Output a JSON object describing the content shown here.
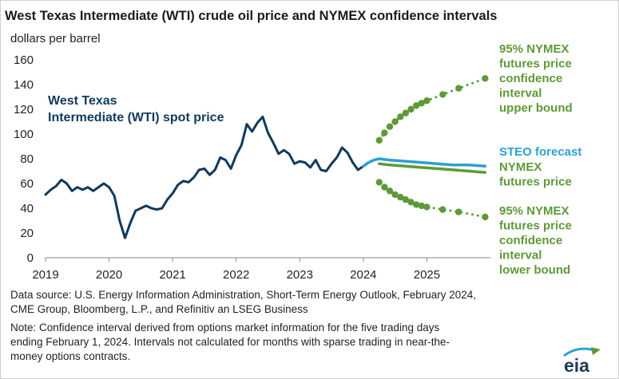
{
  "title": "West Texas Intermediate (WTI) crude oil price and NYMEX confidence intervals",
  "subtitle": "dollars per barrel",
  "source_lines": [
    "Data source: U.S. Energy Information Administration, Short-Term Energy Outlook, February 2024,",
    "CME Group, Bloomberg, L.P., and Refinitiv an LSEG Business"
  ],
  "note_lines": [
    "Note: Confidence interval derived from options market information for the five trading days",
    "ending February 1, 2024. Intervals not calculated for months with sparse trading in near-the-",
    "money options contracts."
  ],
  "logo_text": "eia",
  "colors": {
    "wti": "#0f3a5c",
    "steo": "#2aa1d4",
    "nymex": "#5d9a37",
    "text": "#222222",
    "axis": "#888888"
  },
  "chart_data": {
    "type": "line",
    "xlim": [
      "2019-01",
      "2025-12"
    ],
    "ylim": [
      0,
      160
    ],
    "ytick_labels": [
      "0",
      "20",
      "40",
      "60",
      "80",
      "100",
      "120",
      "140",
      "160"
    ],
    "xtick_labels": [
      "2019",
      "2020",
      "2021",
      "2022",
      "2023",
      "2024",
      "2025"
    ],
    "grid": false,
    "series": [
      {
        "key": "wti",
        "name": "West Texas Intermediate (WTI) spot price",
        "label_lines": [
          "West Texas",
          "Intermediate (WTI) spot price"
        ],
        "color": "#0f3a5c",
        "style": "solid",
        "x": [
          "2019-01",
          "2019-02",
          "2019-03",
          "2019-04",
          "2019-05",
          "2019-06",
          "2019-07",
          "2019-08",
          "2019-09",
          "2019-10",
          "2019-11",
          "2019-12",
          "2020-01",
          "2020-02",
          "2020-03",
          "2020-04",
          "2020-05",
          "2020-06",
          "2020-07",
          "2020-08",
          "2020-09",
          "2020-10",
          "2020-11",
          "2020-12",
          "2021-01",
          "2021-02",
          "2021-03",
          "2021-04",
          "2021-05",
          "2021-06",
          "2021-07",
          "2021-08",
          "2021-09",
          "2021-10",
          "2021-11",
          "2021-12",
          "2022-01",
          "2022-02",
          "2022-03",
          "2022-04",
          "2022-05",
          "2022-06",
          "2022-07",
          "2022-08",
          "2022-09",
          "2022-10",
          "2022-11",
          "2022-12",
          "2023-01",
          "2023-02",
          "2023-03",
          "2023-04",
          "2023-05",
          "2023-06",
          "2023-07",
          "2023-08",
          "2023-09",
          "2023-10",
          "2023-11",
          "2023-12",
          "2024-01"
        ],
        "y": [
          51,
          55,
          58,
          63,
          60,
          54,
          57,
          55,
          57,
          54,
          57,
          60,
          57,
          50,
          30,
          16,
          28,
          38,
          40,
          42,
          40,
          39,
          40,
          47,
          52,
          59,
          62,
          61,
          65,
          71,
          72,
          67,
          71,
          81,
          79,
          72,
          83,
          91,
          108,
          102,
          109,
          114,
          101,
          93,
          84,
          87,
          84,
          76,
          78,
          77,
          73,
          79,
          71,
          70,
          76,
          81,
          89,
          85,
          77,
          71,
          74
        ]
      },
      {
        "key": "steo",
        "name": "STEO forecast",
        "label_lines": [
          "STEO forecast"
        ],
        "color": "#2aa1d4",
        "style": "solid",
        "x": [
          "2024-01",
          "2024-02",
          "2024-03",
          "2024-04",
          "2024-06",
          "2024-09",
          "2024-12",
          "2025-03",
          "2025-06",
          "2025-09",
          "2025-12"
        ],
        "y": [
          74,
          77,
          79,
          80,
          79,
          78,
          77,
          76,
          75,
          75,
          74
        ]
      },
      {
        "key": "nymex",
        "name": "NYMEX futures price",
        "label_lines": [
          "NYMEX",
          "futures price"
        ],
        "color": "#5d9a37",
        "style": "solid",
        "x": [
          "2024-04",
          "2024-06",
          "2024-09",
          "2024-12",
          "2025-03",
          "2025-06",
          "2025-09",
          "2025-12"
        ],
        "y": [
          76,
          75,
          74,
          73,
          72,
          71,
          70,
          69
        ]
      },
      {
        "key": "upper",
        "name": "95% NYMEX futures price confidence interval upper bound",
        "label_lines": [
          "95% NYMEX",
          "futures price",
          "confidence",
          "interval",
          "upper bound"
        ],
        "color": "#5d9a37",
        "style": "dotted",
        "x": [
          "2024-04",
          "2024-05",
          "2024-06",
          "2024-07",
          "2024-08",
          "2024-09",
          "2024-10",
          "2024-11",
          "2024-12",
          "2025-01",
          "2025-04",
          "2025-07",
          "2025-12"
        ],
        "y": [
          95,
          101,
          106,
          110,
          114,
          117,
          120,
          123,
          125,
          127,
          132,
          137,
          145
        ]
      },
      {
        "key": "lower",
        "name": "95% NYMEX futures price confidence interval lower bound",
        "label_lines": [
          "95% NYMEX",
          "futures price",
          "confidence",
          "interval",
          "lower bound"
        ],
        "color": "#5d9a37",
        "style": "dotted",
        "x": [
          "2024-04",
          "2024-05",
          "2024-06",
          "2024-07",
          "2024-08",
          "2024-09",
          "2024-10",
          "2024-11",
          "2024-12",
          "2025-01",
          "2025-04",
          "2025-07",
          "2025-12"
        ],
        "y": [
          61,
          57,
          54,
          51,
          49,
          47,
          45,
          43,
          42,
          41,
          39,
          37,
          33
        ]
      }
    ]
  }
}
